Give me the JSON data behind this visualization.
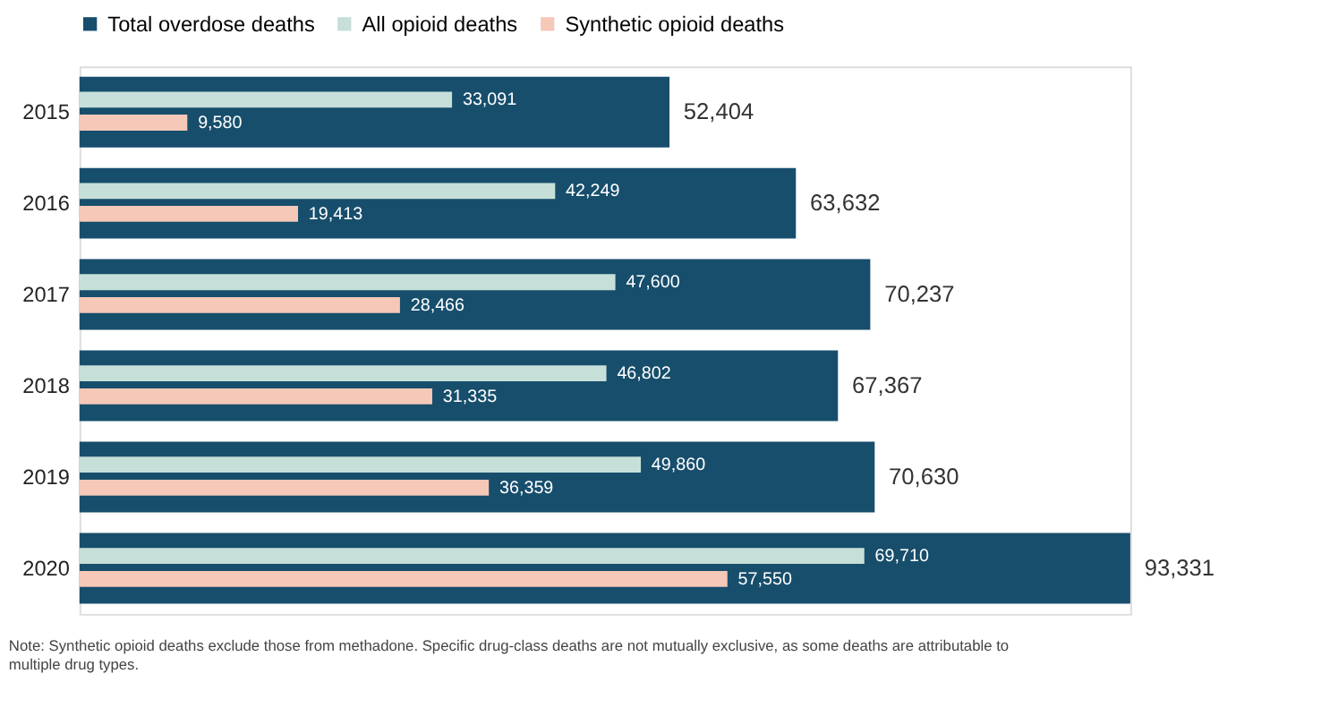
{
  "chart_data": {
    "type": "bar",
    "orientation": "horizontal",
    "categories": [
      "2015",
      "2016",
      "2017",
      "2018",
      "2019",
      "2020"
    ],
    "series": [
      {
        "name": "Total overdose deaths",
        "color": "#174e6c",
        "values": [
          52404,
          63632,
          70237,
          67367,
          70630,
          93331
        ],
        "value_labels": [
          "52,404",
          "63,632",
          "70,237",
          "67,367",
          "70,630",
          "93,331"
        ]
      },
      {
        "name": "All opioid deaths",
        "color": "#c6e0d9",
        "values": [
          33091,
          42249,
          47600,
          46802,
          49860,
          69710
        ],
        "value_labels": [
          "33,091",
          "42,249",
          "47,600",
          "46,802",
          "49,860",
          "69,710"
        ]
      },
      {
        "name": "Synthetic opioid deaths",
        "color": "#f5c8b8",
        "values": [
          9580,
          19413,
          28466,
          31335,
          36359,
          57550
        ],
        "value_labels": [
          "9,580",
          "19,413",
          "28,466",
          "31,335",
          "36,359",
          "57,550"
        ]
      }
    ],
    "legend": "top",
    "annotations": [
      "Note: Synthetic opioid deaths exclude those from methadone. Specific drug-class deaths are not mutually exclusive, as some deaths are attributable to multiple drug types."
    ]
  }
}
